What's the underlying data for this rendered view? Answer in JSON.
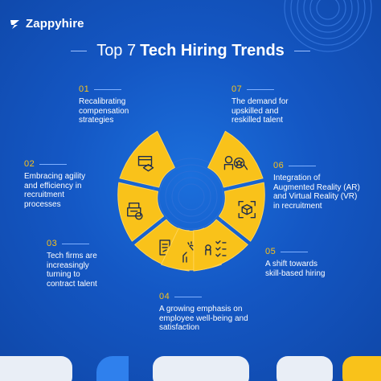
{
  "brand": {
    "name": "Zappyhire"
  },
  "title": {
    "light": "Top 7",
    "bold": "Tech Hiring Trends"
  },
  "trends": [
    {
      "num": "01",
      "text": "Recalibrating\ncompensation\nstrategies",
      "icon": "payment-card-icon"
    },
    {
      "num": "02",
      "text": "Embracing agility\nand efficiency in\nrecruitment\nprocesses",
      "icon": "process-machine-icon"
    },
    {
      "num": "03",
      "text": "Tech firms are\nincreasingly\nturning to\ncontract talent",
      "icon": "contract-sign-icon"
    },
    {
      "num": "04",
      "text": "A growing emphasis on\nemployee well-being and\nsatisfaction",
      "icon": "wellbeing-hands-icon"
    },
    {
      "num": "05",
      "text": "A shift towards\nskill-based hiring",
      "icon": "skill-checklist-icon"
    },
    {
      "num": "06",
      "text": "Integration of\nAugmented Reality (AR)\nand Virtual Reality (VR)\nin recruitment",
      "icon": "ar-vr-cube-icon"
    },
    {
      "num": "07",
      "text": "The demand for\nupskilled and\nreskilled talent",
      "icon": "upskill-badge-icon"
    }
  ],
  "colors": {
    "background": "#1457c4",
    "petal": "#f9c21a",
    "accent_number": "#f9c21a",
    "text": "#ffffff",
    "icon_stroke": "#1f2d4d",
    "bottom_light": "#e9eef6",
    "bottom_blue": "#2f80ed",
    "bottom_yellow": "#f9c21a"
  }
}
